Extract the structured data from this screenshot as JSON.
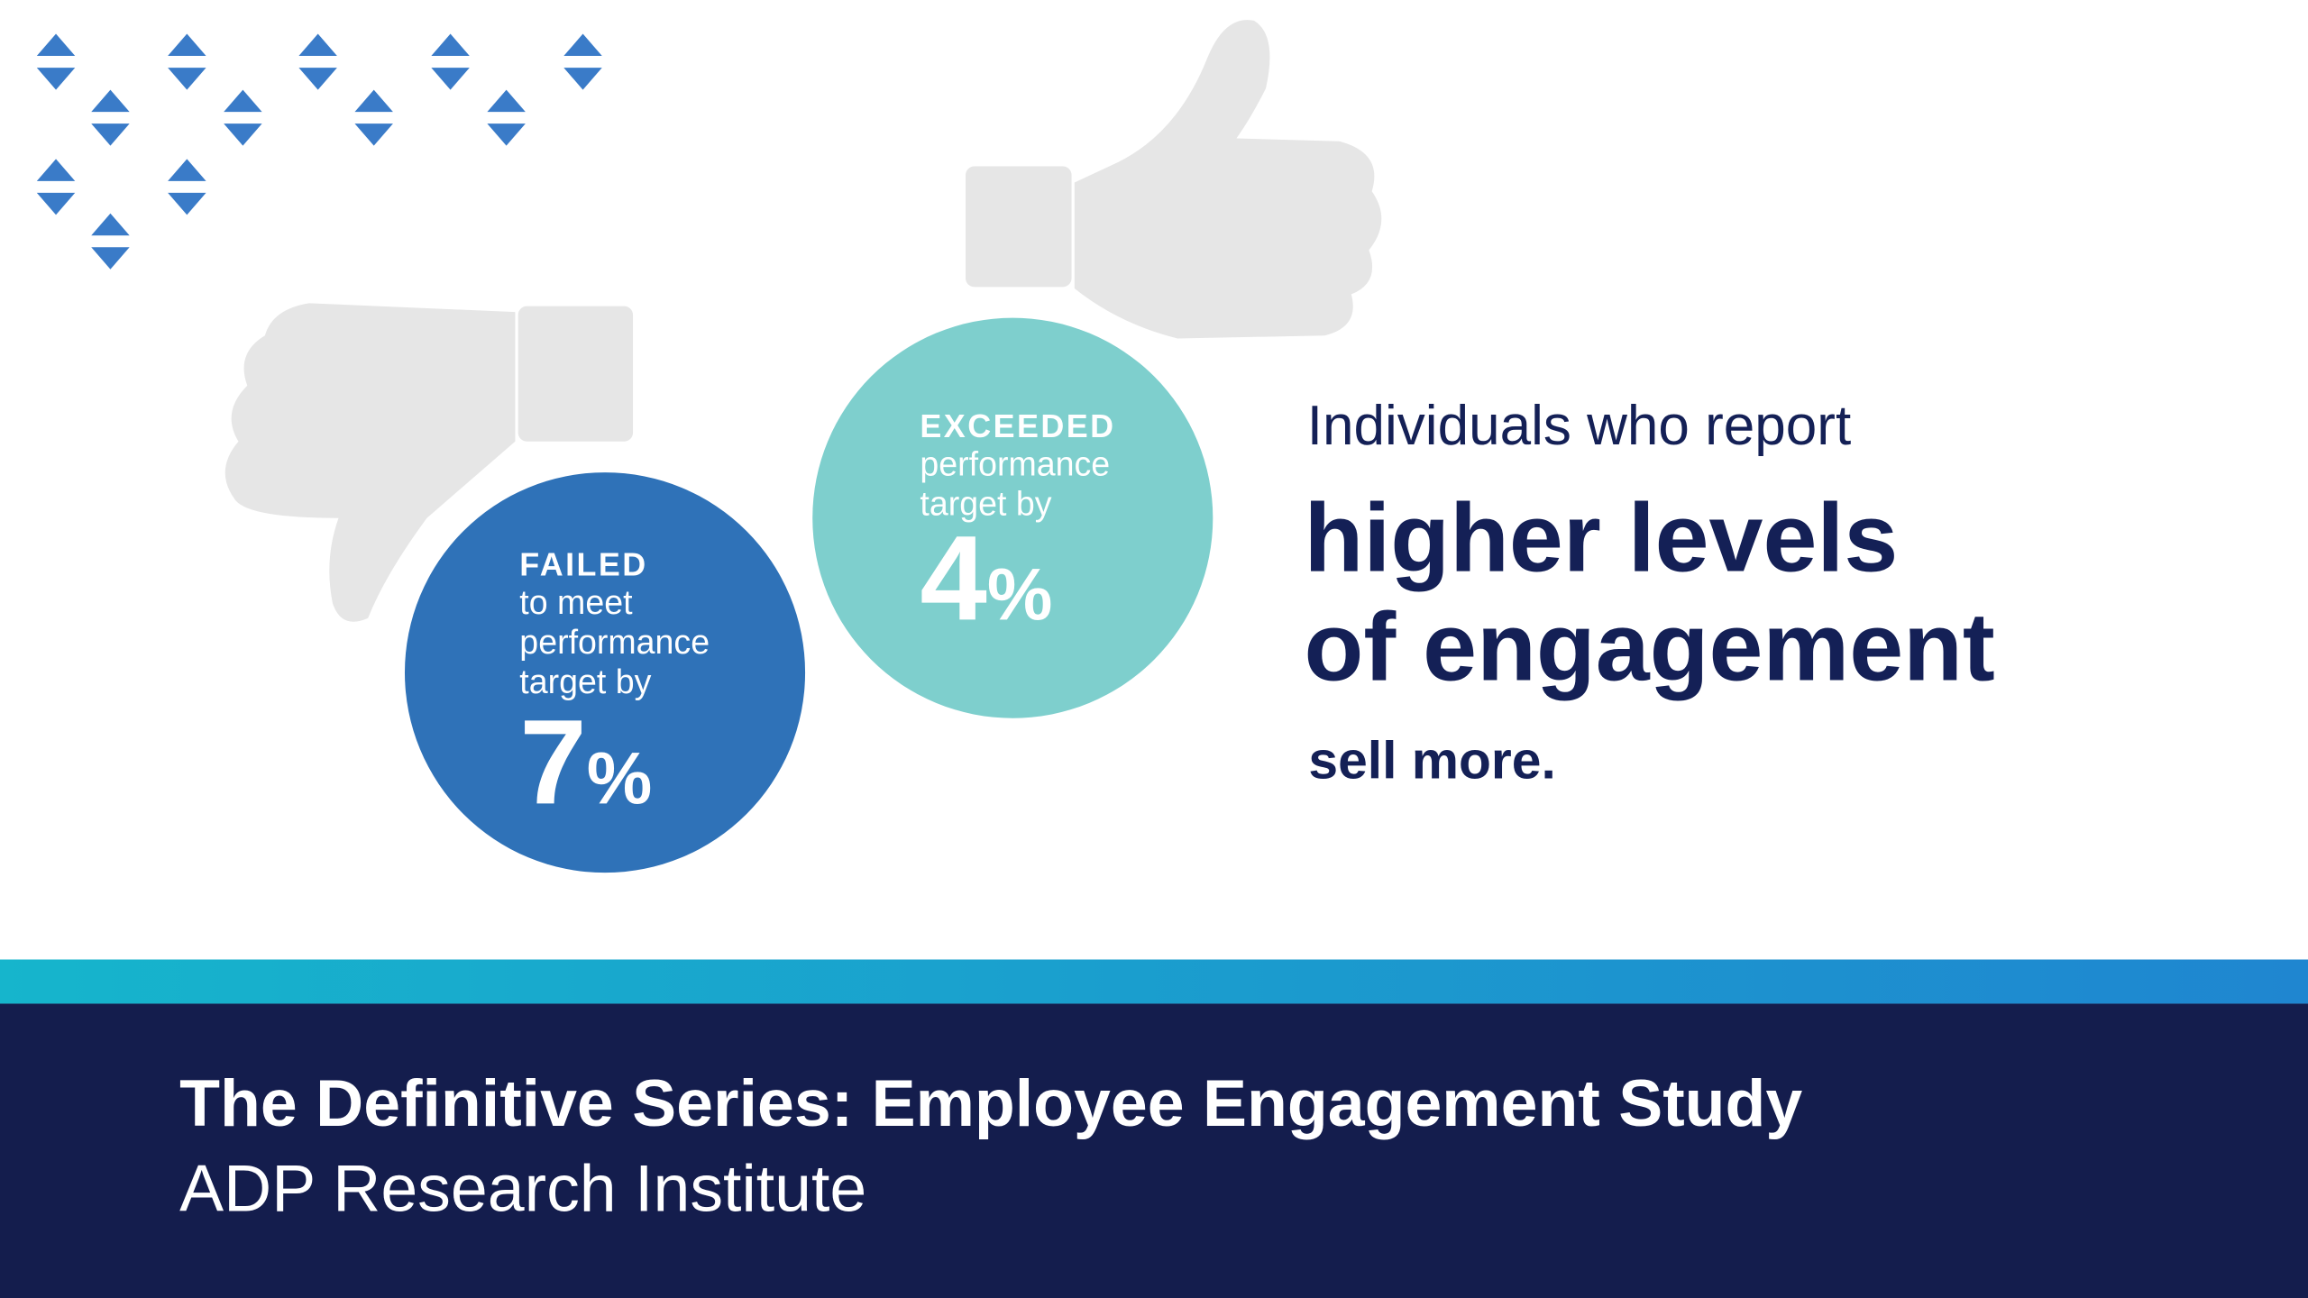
{
  "failed": {
    "label": "FAILED",
    "lines": [
      "to meet",
      "performance",
      "target by"
    ],
    "value": 7,
    "unit": "%"
  },
  "exceeded": {
    "label": "EXCEEDED",
    "lines": [
      "performance",
      "target by"
    ],
    "value": 4,
    "unit": "%"
  },
  "statement": {
    "intro": "Individuals who report",
    "highlight": [
      "higher levels",
      "of engagement"
    ],
    "outro": "sell more."
  },
  "footer": {
    "title": "The Definitive Series: Employee Engagement Study",
    "subtitle": "ADP Research Institute"
  }
}
